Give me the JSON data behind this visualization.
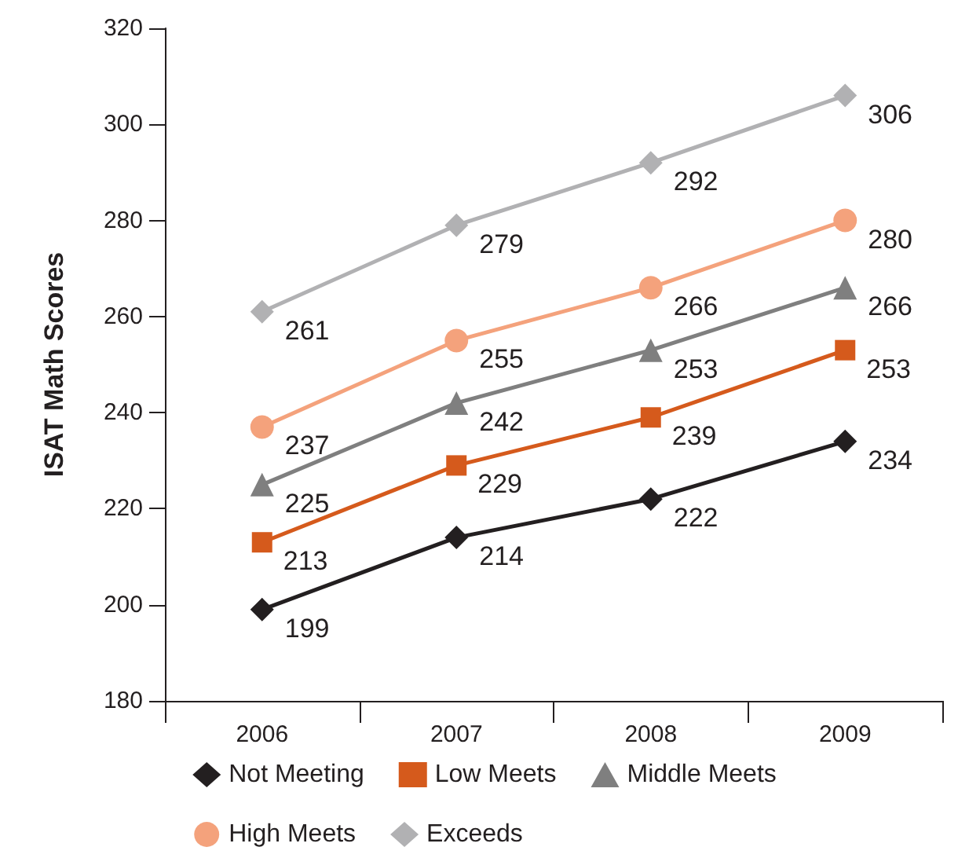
{
  "chart_data": {
    "type": "line",
    "ylabel": "ISAT Math Scores",
    "categories": [
      "2006",
      "2007",
      "2008",
      "2009"
    ],
    "series": [
      {
        "name": "Not Meeting",
        "color": "#231f20",
        "marker": "diamond",
        "values": [
          199,
          214,
          222,
          234
        ]
      },
      {
        "name": "Low Meets",
        "color": "#d55a1c",
        "marker": "square",
        "values": [
          213,
          229,
          239,
          253
        ]
      },
      {
        "name": "Middle Meets",
        "color": "#7f7f7f",
        "marker": "triangle",
        "values": [
          225,
          242,
          253,
          266
        ]
      },
      {
        "name": "High Meets",
        "color": "#f4a27c",
        "marker": "circle",
        "values": [
          237,
          255,
          266,
          280
        ]
      },
      {
        "name": "Exceeds",
        "color": "#b1b1b3",
        "marker": "diamond",
        "values": [
          261,
          279,
          292,
          306
        ]
      }
    ],
    "ylim": [
      180,
      320
    ],
    "yticks": [
      180,
      200,
      220,
      240,
      260,
      280,
      300,
      320
    ],
    "grid": false,
    "legend": "bottom",
    "data_labels": true,
    "line_style": "solid"
  }
}
